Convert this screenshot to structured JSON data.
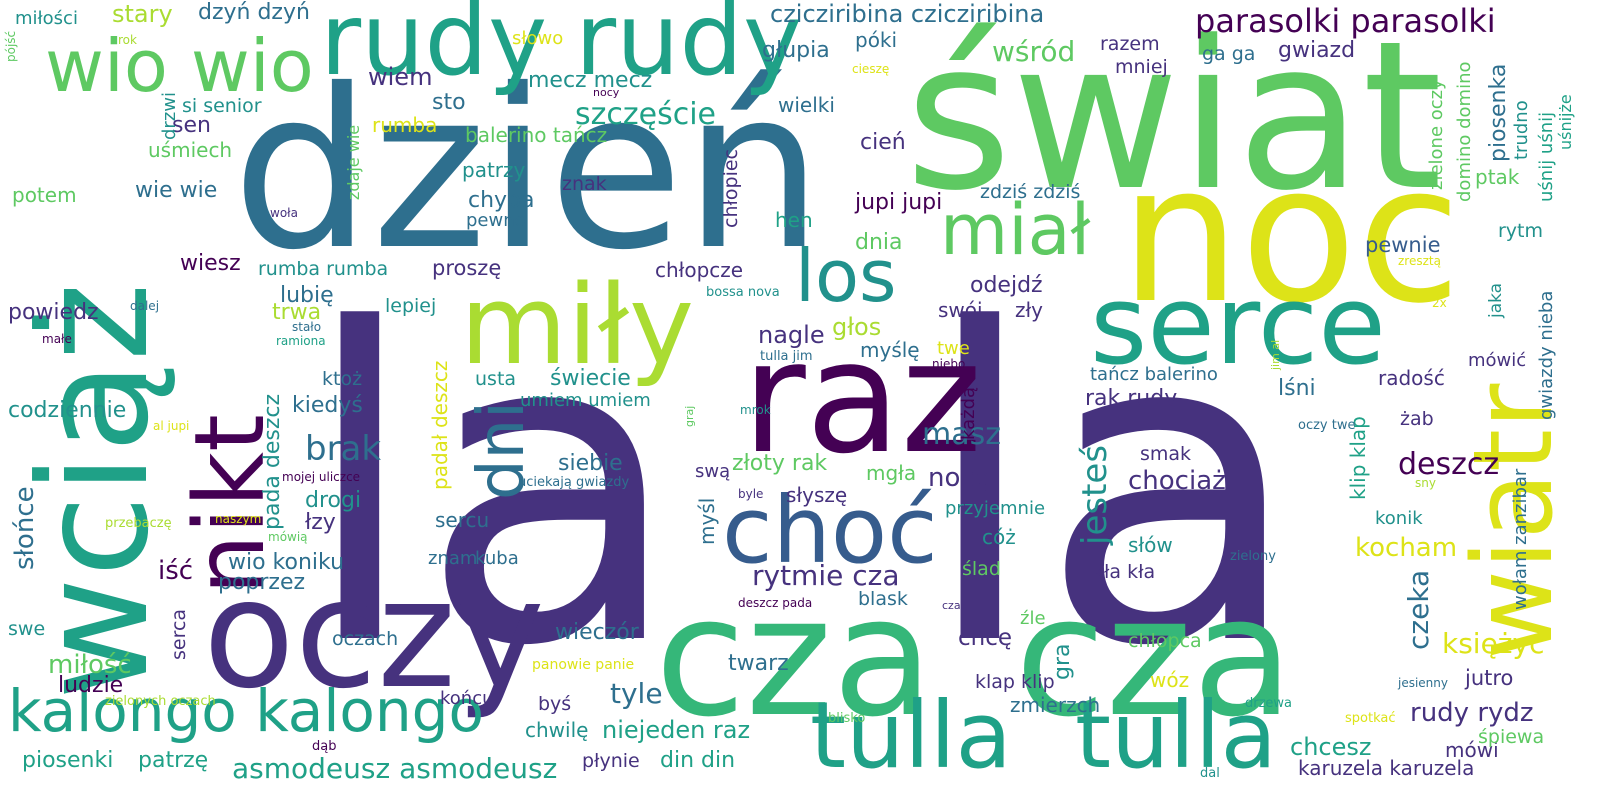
{
  "palette": {
    "deep_purple": "#46327e",
    "indigo": "#365c8d",
    "blue": "#2e6f8e",
    "teal": "#21918c",
    "green": "#1fa187",
    "sea_green": "#35b779",
    "light_green": "#5ec962",
    "lime": "#aadc32",
    "yellow": "#dde318",
    "dark": "#440154"
  },
  "words": [
    "la",
    "la",
    "dzień",
    "świat",
    "noc",
    "wciąż",
    "raz",
    "cza",
    "cza",
    "oczy",
    "rudy",
    "rudy",
    "miły",
    "serce",
    "wiatr",
    "nikt",
    "tulla",
    "tulla",
    "choć",
    "los",
    "kalongo kalongo",
    "dni",
    "miał",
    "wio wio",
    "parasolki parasolki",
    "czicziribina czicziribina",
    "szczęście",
    "wśród",
    "asmodeusz asmodeusz",
    "jesteś",
    "deszcz",
    "brak",
    "masz",
    "rytmie cza",
    "księżyc",
    "czeka",
    "chociaż",
    "rudy rydz",
    "kocham",
    "wiem",
    "stary",
    "dzyń dzyń",
    "głupia",
    "póki",
    "mecz mecz",
    "wielki",
    "razem",
    "mniej",
    "gwiazd",
    "ga ga",
    "sen",
    "sto",
    "rumba",
    "balerino tańcz",
    "patrzy",
    "chyba",
    "pewno",
    "znak",
    "chłopiec",
    "wie wie",
    "uśmiech",
    "potem",
    "miłości",
    "słowo",
    "si senior",
    "cień",
    "jupi jupi",
    "zdziś zdziś",
    "dnia",
    "hen",
    "pewnie",
    "rytm",
    "ptak",
    "piosenka",
    "trudno",
    "domino domino",
    "zielone oczy",
    "uśnij uśnij",
    "uśnijże",
    "wiesz",
    "rumba rumba",
    "proszę",
    "chłopcze",
    "lubię",
    "powiedz",
    "trwa",
    "lepiej",
    "odejdź",
    "swój",
    "zły",
    "nagle",
    "głos",
    "myślę",
    "twe",
    "usta",
    "świecie",
    "umiem umiem",
    "ktoż",
    "kiedyś",
    "codziennie",
    "pada deszcz",
    "padał deszcz",
    "lśni",
    "radość",
    "mówić",
    "rak rudy",
    "tańcz balerino",
    "klip klap",
    "żab",
    "każdą",
    "wołam zanzibar",
    "gwiazdy nieba",
    "jaka",
    "siebie",
    "złoty rak",
    "mgła",
    "nocą",
    "smak",
    "słońce",
    "drogi",
    "łzy",
    "słyszę",
    "przyjemnie",
    "sercu",
    "myśl",
    "iść",
    "wio koniku",
    "poprzez",
    "znam",
    "kuba",
    "cóż",
    "słów",
    "konik",
    "kła kła",
    "ślad",
    "blask",
    "serca",
    "swe",
    "wieczór",
    "oczach",
    "chcę",
    "gra",
    "klap klip",
    "miłość",
    "ludzie",
    "końcu",
    "twarz",
    "tyle",
    "chwilę",
    "niejeden raz",
    "chcesz",
    "wóz",
    "zmierzch",
    "jutro",
    "mówi",
    "śpiewa",
    "karuzela karuzela",
    "piosenki",
    "patrzę",
    "din din",
    "płynie",
    "byś",
    "chłopca",
    "źle",
    "drzewa",
    "dąb",
    "dal",
    "blisko",
    "spotkać",
    "jesienny",
    "zielonych oczach",
    "panowie panie",
    "deszcz pada",
    "cza",
    "zielony",
    "al jupi",
    "mojej uliczce",
    "uciekają gwiazdy",
    "byle",
    "sny",
    "oczy twe",
    "mrok",
    "niebo",
    "graj",
    "jim al",
    "2x",
    "zresztą",
    "bossa nova",
    "tulla jim",
    "woła",
    "stało",
    "ramiona",
    "dalej",
    "małe",
    "naszym",
    "mówią",
    "przebaczę",
    "pójść",
    "rok",
    "nocy",
    "cieszę",
    "drzwi",
    "zdaje wie",
    "swą",
    "rok"
  ]
}
